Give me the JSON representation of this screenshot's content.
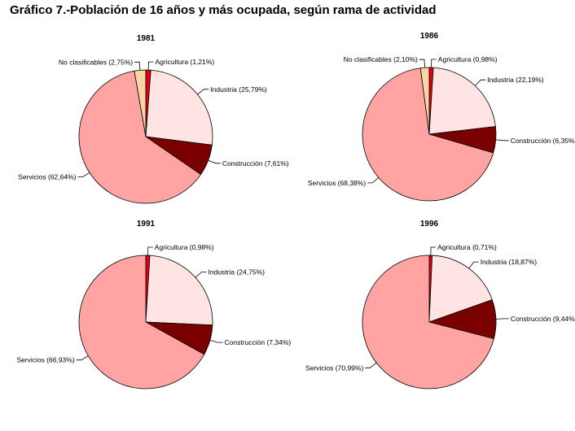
{
  "page": {
    "title": "Gráfico 7.-Población de 16 años y más ocupada, según rama de actividad"
  },
  "colors": {
    "Agricultura": "#e8000b",
    "Industria": "#ffe4e4",
    "Construcción": "#7a0000",
    "Servicios": "#ffa3a3",
    "No clasificables": "#f9d5a5"
  },
  "chart_data": [
    {
      "type": "pie",
      "title": "1981",
      "slices": [
        {
          "name": "Agricultura",
          "value": 1.21,
          "label": "Agricultura (1,21%)"
        },
        {
          "name": "Industria",
          "value": 25.79,
          "label": "Industria (25,79%)"
        },
        {
          "name": "Construcción",
          "value": 7.61,
          "label": "Construcción (7,61%)"
        },
        {
          "name": "Servicios",
          "value": 62.64,
          "label": "Servicios (62,64%)"
        },
        {
          "name": "No clasificables",
          "value": 2.75,
          "label": "No clasificables (2,75%)"
        }
      ]
    },
    {
      "type": "pie",
      "title": "1986",
      "slices": [
        {
          "name": "Agricultura",
          "value": 0.98,
          "label": "Agricultura (0,98%)"
        },
        {
          "name": "Industria",
          "value": 22.19,
          "label": "Industria (22,19%)"
        },
        {
          "name": "Construcción",
          "value": 6.35,
          "label": "Construcción (6,35%)"
        },
        {
          "name": "Servicios",
          "value": 68.38,
          "label": "Servicios (68,38%)"
        },
        {
          "name": "No clasificables",
          "value": 2.1,
          "label": "No clasificables (2,10%)"
        }
      ]
    },
    {
      "type": "pie",
      "title": "1991",
      "slices": [
        {
          "name": "Agricultura",
          "value": 0.98,
          "label": "Agricultura (0,98%)"
        },
        {
          "name": "Industria",
          "value": 24.75,
          "label": "Industria (24,75%)"
        },
        {
          "name": "Construcción",
          "value": 7.34,
          "label": "Construcción (7,34%)"
        },
        {
          "name": "Servicios",
          "value": 66.93,
          "label": "Servicios (66,93%)"
        }
      ]
    },
    {
      "type": "pie",
      "title": "1996",
      "slices": [
        {
          "name": "Agricultura",
          "value": 0.71,
          "label": "Agricultura (0,71%)"
        },
        {
          "name": "Industria",
          "value": 18.87,
          "label": "Industria (18,87%)"
        },
        {
          "name": "Construcción",
          "value": 9.44,
          "label": "Construcción (9,44%)"
        },
        {
          "name": "Servicios",
          "value": 70.99,
          "label": "Servicios (70,99%)"
        }
      ]
    }
  ]
}
